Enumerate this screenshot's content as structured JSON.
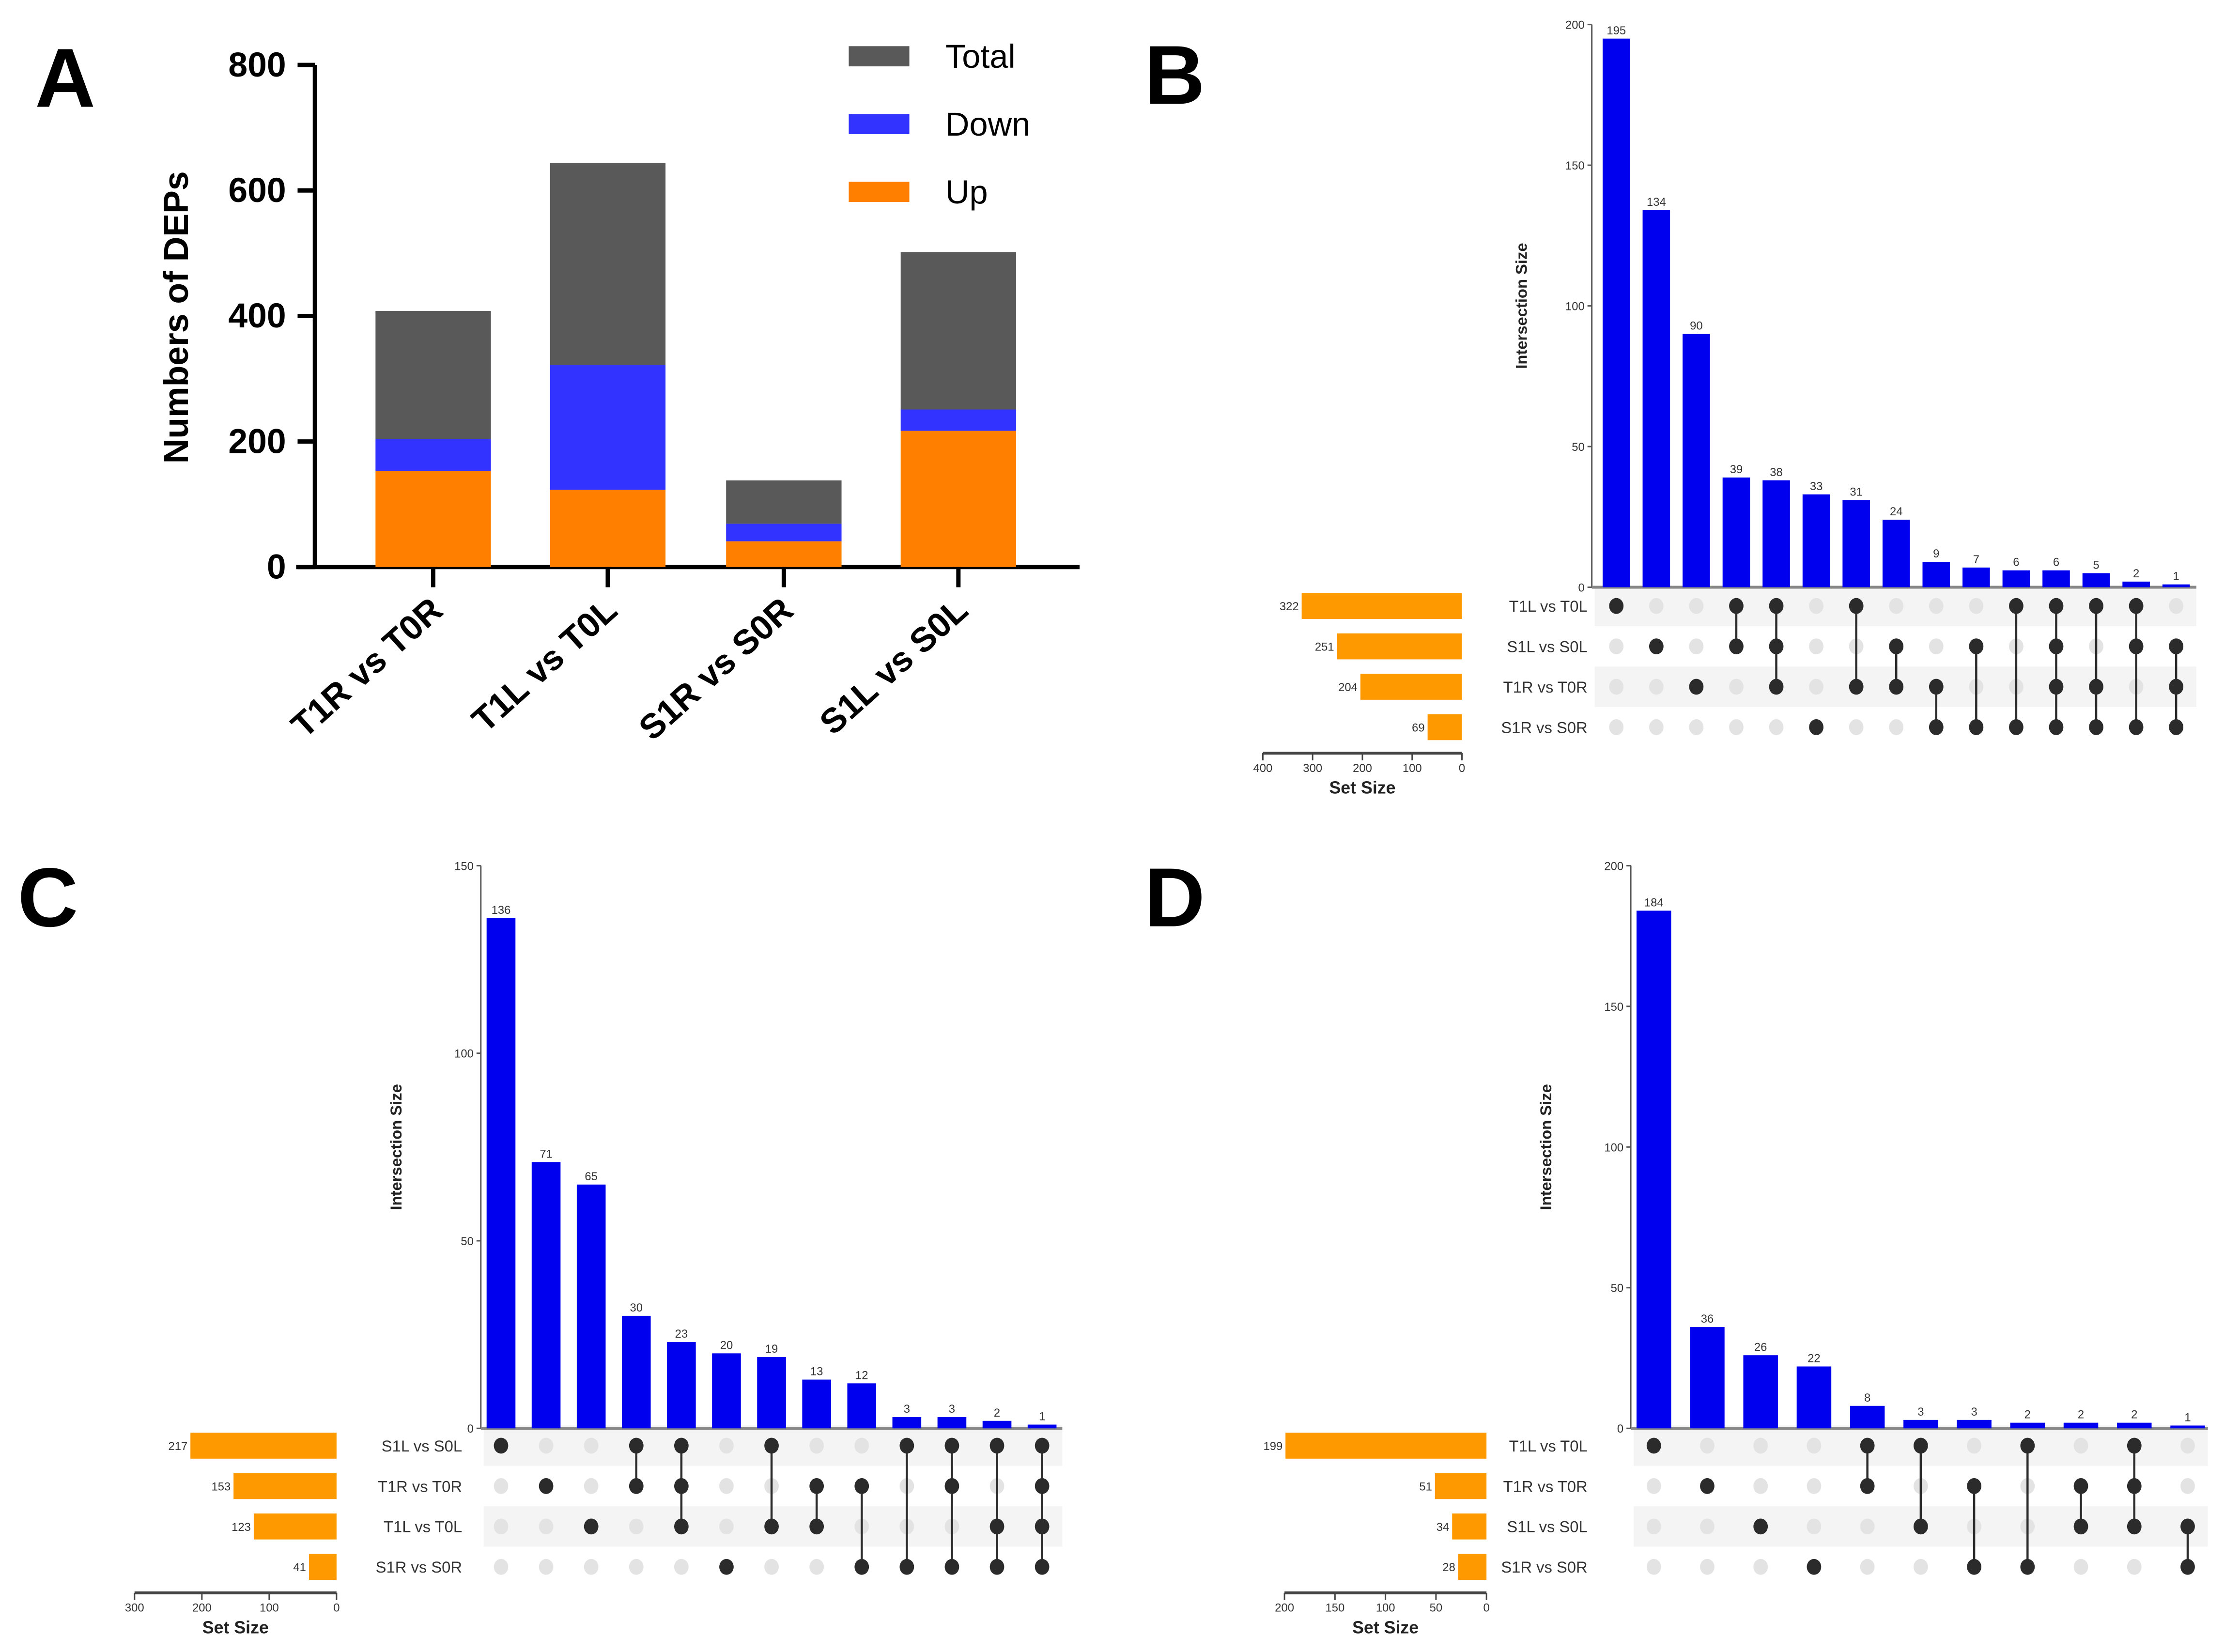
{
  "chart_data": [
    {
      "panel": "A",
      "type": "bar",
      "stacked": true,
      "ylabel": "Numbers of DEPs",
      "ylim": [
        0,
        800
      ],
      "yticks": [
        "0",
        "200",
        "400",
        "600",
        "800"
      ],
      "categories": [
        "T1R vs T0R",
        "T1L vs T0L",
        "S1R vs S0R",
        "S1L vs S0L"
      ],
      "series": [
        {
          "name": "Up",
          "color": "#ff8000",
          "values": [
            153,
            123,
            41,
            217
          ]
        },
        {
          "name": "Down",
          "color": "#3333ff",
          "values": [
            51,
            199,
            28,
            34
          ]
        },
        {
          "name": "Total",
          "color": "#595959",
          "values": [
            204,
            322,
            69,
            251
          ]
        }
      ],
      "legend": [
        "Total",
        "Down",
        "Up"
      ],
      "legend_position": "top-right"
    },
    {
      "panel": "B",
      "type": "bar",
      "subtype": "upset",
      "ylabel": "Intersection Size",
      "ylim": [
        0,
        200
      ],
      "yticks": [
        "0",
        "50",
        "100",
        "150",
        "200"
      ],
      "intersection_sizes": [
        195,
        134,
        90,
        39,
        38,
        33,
        31,
        24,
        9,
        7,
        6,
        6,
        5,
        2,
        1
      ],
      "sets": [
        "T1L vs T0L",
        "S1L vs S0L",
        "T1R vs T0R",
        "S1R vs S0R"
      ],
      "set_sizes": [
        322,
        251,
        204,
        69
      ],
      "set_size_label": "Set Size",
      "set_size_max": 400,
      "set_size_ticks": [
        "400",
        "300",
        "200",
        "100",
        "0"
      ],
      "memberships": [
        [
          0
        ],
        [
          1
        ],
        [
          2
        ],
        [
          0,
          1
        ],
        [
          0,
          1,
          2
        ],
        [
          3
        ],
        [
          0,
          2
        ],
        [
          1,
          2
        ],
        [
          2,
          3
        ],
        [
          1,
          3
        ],
        [
          0,
          3
        ],
        [
          0,
          1,
          2,
          3
        ],
        [
          0,
          2,
          3
        ],
        [
          0,
          1,
          3
        ],
        [
          1,
          2,
          3
        ]
      ]
    },
    {
      "panel": "C",
      "type": "bar",
      "subtype": "upset",
      "ylabel": "Intersection Size",
      "ylim": [
        0,
        150
      ],
      "yticks": [
        "0",
        "50",
        "100",
        "150"
      ],
      "intersection_sizes": [
        136,
        71,
        65,
        30,
        23,
        20,
        19,
        13,
        12,
        3,
        3,
        2,
        1
      ],
      "sets": [
        "S1L vs S0L",
        "T1R vs T0R",
        "T1L vs T0L",
        "S1R vs S0R"
      ],
      "set_sizes": [
        217,
        153,
        123,
        41
      ],
      "set_size_label": "Set Size",
      "set_size_max": 300,
      "set_size_ticks": [
        "300",
        "200",
        "100",
        "0"
      ],
      "memberships": [
        [
          0
        ],
        [
          1
        ],
        [
          2
        ],
        [
          0,
          1
        ],
        [
          0,
          1,
          2
        ],
        [
          3
        ],
        [
          0,
          2
        ],
        [
          1,
          2
        ],
        [
          1,
          3
        ],
        [
          0,
          3
        ],
        [
          0,
          1,
          3
        ],
        [
          0,
          2,
          3
        ],
        [
          0,
          1,
          2,
          3
        ]
      ]
    },
    {
      "panel": "D",
      "type": "bar",
      "subtype": "upset",
      "ylabel": "Intersection Size",
      "ylim": [
        0,
        200
      ],
      "yticks": [
        "0",
        "50",
        "100",
        "150",
        "200"
      ],
      "intersection_sizes": [
        184,
        36,
        26,
        22,
        8,
        3,
        3,
        2,
        2,
        2,
        1
      ],
      "sets": [
        "T1L vs T0L",
        "T1R vs T0R",
        "S1L vs S0L",
        "S1R vs S0R"
      ],
      "set_sizes": [
        199,
        51,
        34,
        28
      ],
      "set_size_label": "Set Size",
      "set_size_max": 200,
      "set_size_ticks": [
        "200",
        "150",
        "100",
        "50",
        "0"
      ],
      "memberships": [
        [
          0
        ],
        [
          1
        ],
        [
          2
        ],
        [
          3
        ],
        [
          0,
          1
        ],
        [
          0,
          2
        ],
        [
          1,
          3
        ],
        [
          0,
          3
        ],
        [
          1,
          2
        ],
        [
          0,
          1,
          2
        ],
        [
          2,
          3
        ]
      ]
    }
  ],
  "colors": {
    "intersection_bar": "#0000ee",
    "set_bar": "#ff9900",
    "dot_on": "#2b2b2b",
    "dot_off": "#e3e3e3"
  }
}
